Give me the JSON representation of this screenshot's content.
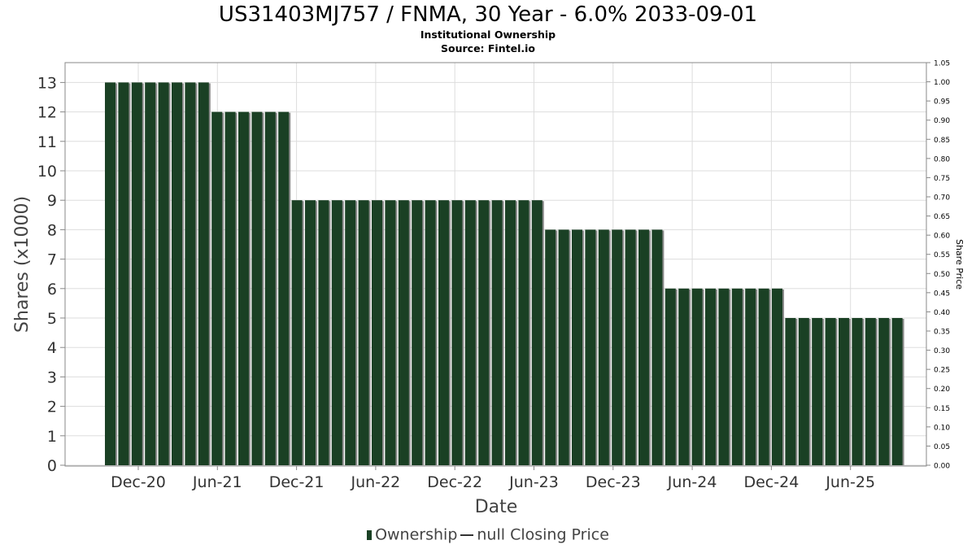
{
  "chart_data": {
    "type": "bar",
    "title": "US31403MJ757 / FNMA, 30 Year - 6.0% 2033-09-01",
    "subtitle": "Institutional Ownership",
    "source": "Source: Fintel.io",
    "xlabel": "Date",
    "ylabel": "Shares (x1000)",
    "y2label": "Share Price",
    "ylim": [
      0,
      13.6
    ],
    "y2lim": [
      0,
      1.05
    ],
    "yticks": [
      "0",
      "1",
      "2",
      "3",
      "4",
      "5",
      "6",
      "7",
      "8",
      "9",
      "10",
      "11",
      "12",
      "13"
    ],
    "y2ticks": [
      "0.00",
      "0.05",
      "0.10",
      "0.15",
      "0.20",
      "0.25",
      "0.30",
      "0.35",
      "0.40",
      "0.45",
      "0.50",
      "0.55",
      "0.60",
      "0.65",
      "0.70",
      "0.75",
      "0.80",
      "0.85",
      "0.90",
      "0.95",
      "1.00",
      "1.05"
    ],
    "xticks": [
      "Dec-20",
      "Jun-21",
      "Dec-21",
      "Jun-22",
      "Dec-22",
      "Jun-23",
      "Dec-23",
      "Jun-24",
      "Dec-24",
      "Jun-25"
    ],
    "grid": true,
    "legend_position": "bottom",
    "colors": {
      "bar": "#1a4024",
      "bar_shadow": "#8a8a8a",
      "grid": "#dddddd"
    },
    "series": [
      {
        "name": "Ownership",
        "values": [
          13,
          13,
          13,
          13,
          13,
          13,
          13,
          13,
          12,
          12,
          12,
          12,
          12,
          12,
          9,
          9,
          9,
          9,
          9,
          9,
          9,
          9,
          9,
          9,
          9,
          9,
          9,
          9,
          9,
          9,
          9,
          9,
          9,
          8,
          8,
          8,
          8,
          8,
          8,
          8,
          8,
          8,
          6,
          6,
          6,
          6,
          6,
          6,
          6,
          6,
          6,
          5,
          5,
          5,
          5,
          5,
          5,
          5,
          5,
          5
        ]
      }
    ],
    "legend": [
      "Ownership",
      "null Closing Price"
    ]
  }
}
